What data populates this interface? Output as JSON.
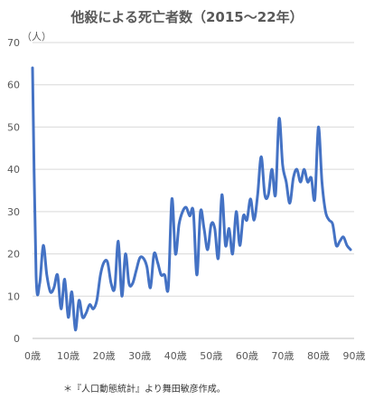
{
  "chart_data": {
    "type": "line",
    "title": "他殺による死亡者数（2015～22年）",
    "ylabel": "（人）",
    "xlabel": "",
    "ylim": [
      0,
      70
    ],
    "xlim": [
      0,
      90
    ],
    "y_ticks": [
      "0",
      "10",
      "20",
      "30",
      "40",
      "50",
      "60",
      "70"
    ],
    "x_ticks": [
      "0歳",
      "10歳",
      "20歳",
      "30歳",
      "40歳",
      "50歳",
      "60歳",
      "70歳",
      "80歳",
      "90歳"
    ],
    "grid": true,
    "legend": "none",
    "color": "#4472c4",
    "x": [
      0,
      1,
      2,
      3,
      4,
      5,
      6,
      7,
      8,
      9,
      10,
      11,
      12,
      13,
      14,
      15,
      16,
      17,
      18,
      19,
      20,
      21,
      22,
      23,
      24,
      25,
      26,
      27,
      28,
      29,
      30,
      31,
      32,
      33,
      34,
      35,
      36,
      37,
      38,
      39,
      40,
      41,
      42,
      43,
      44,
      45,
      46,
      47,
      48,
      49,
      50,
      51,
      52,
      53,
      54,
      55,
      56,
      57,
      58,
      59,
      60,
      61,
      62,
      63,
      64,
      65,
      66,
      67,
      68,
      69,
      70,
      71,
      72,
      73,
      74,
      75,
      76,
      77,
      78,
      79,
      80,
      81,
      82,
      83,
      84,
      85,
      86,
      87,
      88,
      89
    ],
    "series": [
      {
        "values": [
          64,
          15,
          13,
          22,
          15,
          11,
          12,
          15,
          7,
          14,
          5,
          11,
          2,
          9,
          5,
          6,
          8,
          7,
          9,
          15,
          18,
          18,
          13,
          12,
          23,
          10,
          20,
          13,
          13,
          16,
          19,
          19,
          17,
          12,
          20,
          18,
          15,
          15,
          12,
          33,
          20,
          27,
          30,
          31,
          29,
          30,
          15,
          30,
          26,
          21,
          27,
          26,
          19,
          34,
          22,
          26,
          20,
          30,
          22,
          29,
          28,
          33,
          28,
          34,
          43,
          34,
          34,
          40,
          34,
          52,
          41,
          37,
          32,
          38,
          40,
          37,
          40,
          37,
          38,
          33,
          50,
          37,
          30,
          28,
          27,
          22,
          23,
          24,
          22,
          21
        ]
      }
    ]
  },
  "source_note": "＊『人口動態統計』より舞田敏彦作成。"
}
